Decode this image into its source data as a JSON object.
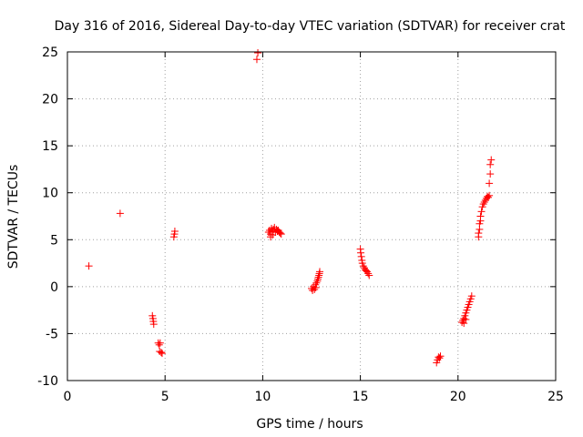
{
  "chart_data": {
    "type": "scatter",
    "title": "Day 316 of 2016, Sidereal Day-to-day VTEC variation (SDTVAR) for receiver crat",
    "xlabel": "GPS time / hours",
    "ylabel": "SDTVAR / TECUs",
    "xlim": [
      0,
      25
    ],
    "ylim": [
      -10,
      25
    ],
    "xticks": [
      0,
      5,
      10,
      15,
      20,
      25
    ],
    "yticks": [
      -10,
      -5,
      0,
      5,
      10,
      15,
      20,
      25
    ],
    "grid": true,
    "marker": "+",
    "color": "#ff0000",
    "series": [
      {
        "name": "SDTVAR",
        "points": [
          [
            1.1,
            2.2
          ],
          [
            2.7,
            7.8
          ],
          [
            4.35,
            -3.1
          ],
          [
            4.38,
            -3.4
          ],
          [
            4.4,
            -3.7
          ],
          [
            4.42,
            -4.0
          ],
          [
            4.65,
            -6.0
          ],
          [
            4.7,
            -6.2
          ],
          [
            4.75,
            -6.0
          ],
          [
            4.72,
            -6.9
          ],
          [
            4.8,
            -7.0
          ],
          [
            4.85,
            -7.1
          ],
          [
            5.45,
            5.3
          ],
          [
            5.48,
            5.6
          ],
          [
            5.5,
            5.9
          ],
          [
            9.7,
            24.2
          ],
          [
            9.75,
            24.9
          ],
          [
            10.3,
            5.8
          ],
          [
            10.35,
            6.0
          ],
          [
            10.4,
            5.6
          ],
          [
            10.45,
            6.2
          ],
          [
            10.5,
            5.9
          ],
          [
            10.55,
            6.1
          ],
          [
            10.6,
            6.3
          ],
          [
            10.65,
            5.8
          ],
          [
            10.7,
            6.1
          ],
          [
            10.75,
            5.9
          ],
          [
            10.8,
            6.0
          ],
          [
            10.85,
            5.8
          ],
          [
            10.9,
            5.7
          ],
          [
            10.95,
            5.6
          ],
          [
            10.4,
            5.3
          ],
          [
            10.5,
            5.5
          ],
          [
            12.5,
            -0.2
          ],
          [
            12.55,
            -0.4
          ],
          [
            12.6,
            0.0
          ],
          [
            12.65,
            -0.3
          ],
          [
            12.7,
            0.2
          ],
          [
            12.72,
            -0.1
          ],
          [
            12.75,
            0.4
          ],
          [
            12.8,
            0.6
          ],
          [
            12.82,
            0.8
          ],
          [
            12.85,
            1.0
          ],
          [
            12.88,
            1.2
          ],
          [
            12.9,
            1.4
          ],
          [
            12.92,
            1.6
          ],
          [
            15.0,
            4.0
          ],
          [
            15.02,
            3.6
          ],
          [
            15.05,
            3.2
          ],
          [
            15.08,
            2.8
          ],
          [
            15.1,
            2.5
          ],
          [
            15.15,
            2.2
          ],
          [
            15.2,
            2.0
          ],
          [
            15.25,
            1.8
          ],
          [
            15.3,
            1.7
          ],
          [
            15.35,
            1.6
          ],
          [
            15.4,
            1.4
          ],
          [
            15.45,
            1.2
          ],
          [
            18.9,
            -8.1
          ],
          [
            18.95,
            -7.8
          ],
          [
            19.0,
            -7.5
          ],
          [
            19.05,
            -7.6
          ],
          [
            19.1,
            -7.4
          ],
          [
            20.2,
            -3.8
          ],
          [
            20.25,
            -3.6
          ],
          [
            20.3,
            -3.4
          ],
          [
            20.35,
            -3.1
          ],
          [
            20.4,
            -2.8
          ],
          [
            20.45,
            -2.5
          ],
          [
            20.5,
            -2.2
          ],
          [
            20.55,
            -1.9
          ],
          [
            20.6,
            -1.6
          ],
          [
            20.65,
            -1.3
          ],
          [
            20.7,
            -1.0
          ],
          [
            20.3,
            -3.9
          ],
          [
            20.4,
            -3.5
          ],
          [
            21.05,
            5.3
          ],
          [
            21.05,
            5.7
          ],
          [
            21.1,
            6.1
          ],
          [
            21.1,
            6.7
          ],
          [
            21.15,
            7.0
          ],
          [
            21.15,
            7.5
          ],
          [
            21.2,
            8.0
          ],
          [
            21.25,
            8.5
          ],
          [
            21.3,
            8.8
          ],
          [
            21.35,
            9.0
          ],
          [
            21.4,
            9.2
          ],
          [
            21.45,
            9.4
          ],
          [
            21.5,
            9.6
          ],
          [
            21.55,
            9.5
          ],
          [
            21.6,
            9.7
          ],
          [
            21.6,
            11.0
          ],
          [
            21.65,
            12.0
          ],
          [
            21.65,
            13.0
          ],
          [
            21.7,
            13.5
          ]
        ]
      }
    ]
  }
}
